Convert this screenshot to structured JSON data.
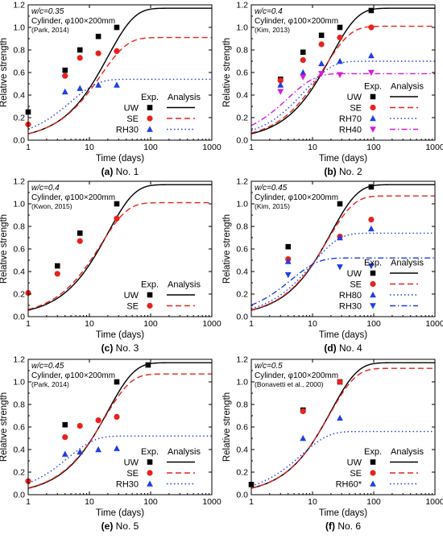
{
  "figure": {
    "ylabel": "Relative strength",
    "xlabel": "Time (days)",
    "legend_headers": [
      "Exp.",
      "Analysis"
    ],
    "colors": {
      "UW": "#000000",
      "SE": "#e8221c",
      "RH30": "#1f3fe0",
      "RH70": "#1f3fe0",
      "RH80": "#1f3fe0",
      "RH60*": "#1f3fe0",
      "RH40": "#d61ad6"
    }
  },
  "chart_data": [
    {
      "type": "scatter",
      "caption_label": "(a)",
      "caption_text": "No. 1",
      "annotation": {
        "wc": "w/c=0.35",
        "cyl": "Cylinder, φ100×200mm",
        "ref": "(Park, 2014)"
      },
      "xscale": "log",
      "xlim": [
        1,
        1000
      ],
      "ylim": [
        0,
        1.2
      ],
      "xticks": [
        1,
        10,
        100,
        1000
      ],
      "yticks": [
        0.0,
        0.2,
        0.4,
        0.6,
        0.8,
        1.0,
        1.2
      ],
      "legend_position": "bottom-right",
      "series": [
        {
          "name": "UW",
          "marker": "square",
          "line": "solid",
          "points": [
            [
              1,
              0.25
            ],
            [
              4,
              0.62
            ],
            [
              7,
              0.8
            ],
            [
              14,
              0.92
            ],
            [
              28,
              1.0
            ]
          ],
          "curve": {
            "ult": 1.17,
            "k": 0.05
          }
        },
        {
          "name": "SE",
          "marker": "circle",
          "line": "dashed",
          "points": [
            [
              1,
              0.14
            ],
            [
              4,
              0.57
            ],
            [
              7,
              0.73
            ],
            [
              14,
              0.77
            ],
            [
              28,
              0.79
            ]
          ],
          "curve": {
            "ult": 0.91,
            "k": 0.065
          }
        },
        {
          "name": "RH30",
          "marker": "triangle-up",
          "line": "dotted",
          "points": [
            [
              4,
              0.43
            ],
            [
              7,
              0.46
            ],
            [
              14,
              0.49
            ],
            [
              28,
              0.49
            ]
          ],
          "curve": {
            "ult": 0.54,
            "k": 0.2
          }
        }
      ]
    },
    {
      "type": "scatter",
      "caption_label": "(b)",
      "caption_text": "No. 2",
      "annotation": {
        "wc": "w/c=0.4",
        "cyl": "Cylinder, φ100×200mm",
        "ref": "(Kim, 2013)"
      },
      "xscale": "log",
      "xlim": [
        1,
        1000
      ],
      "ylim": [
        0,
        1.2
      ],
      "xticks": [
        1,
        10,
        100,
        1000
      ],
      "yticks": [
        0.0,
        0.2,
        0.4,
        0.6,
        0.8,
        1.0,
        1.2
      ],
      "legend_position": "bottom-right",
      "series": [
        {
          "name": "UW",
          "marker": "square",
          "line": "solid",
          "points": [
            [
              3,
              0.54
            ],
            [
              7,
              0.78
            ],
            [
              14,
              0.93
            ],
            [
              28,
              1.0
            ],
            [
              91,
              1.15
            ]
          ],
          "curve": {
            "ult": 1.17,
            "k": 0.05
          }
        },
        {
          "name": "SE",
          "marker": "circle",
          "line": "dashed",
          "points": [
            [
              3,
              0.53
            ],
            [
              7,
              0.71
            ],
            [
              14,
              0.85
            ],
            [
              28,
              0.91
            ],
            [
              91,
              1.0
            ]
          ],
          "curve": {
            "ult": 1.01,
            "k": 0.065
          }
        },
        {
          "name": "RH70",
          "marker": "triangle-up",
          "line": "dotted",
          "points": [
            [
              3,
              0.49
            ],
            [
              7,
              0.6
            ],
            [
              14,
              0.68
            ],
            [
              28,
              0.7
            ],
            [
              91,
              0.75
            ]
          ],
          "curve": {
            "ult": 0.7,
            "k": 0.13
          }
        },
        {
          "name": "RH40",
          "marker": "triangle-down",
          "line": "dashdot",
          "points": [
            [
              3,
              0.43
            ],
            [
              7,
              0.56
            ],
            [
              14,
              0.59
            ],
            [
              28,
              0.58
            ],
            [
              91,
              0.6
            ]
          ],
          "curve": {
            "ult": 0.59,
            "k": 0.25
          }
        }
      ]
    },
    {
      "type": "scatter",
      "caption_label": "(c)",
      "caption_text": "No. 3",
      "annotation": {
        "wc": "w/c=0.4",
        "cyl": "Cylinder, φ100×200mm",
        "ref": "(Kwon, 2015)"
      },
      "xscale": "log",
      "xlim": [
        1,
        1000
      ],
      "ylim": [
        0,
        1.2
      ],
      "xticks": [
        1,
        10,
        100,
        1000
      ],
      "yticks": [
        0.0,
        0.2,
        0.4,
        0.6,
        0.8,
        1.0,
        1.2
      ],
      "legend_position": "bottom-right",
      "series": [
        {
          "name": "UW",
          "marker": "square",
          "line": "solid",
          "points": [
            [
              3,
              0.45
            ],
            [
              7,
              0.74
            ],
            [
              28,
              1.0
            ]
          ],
          "curve": {
            "ult": 1.17,
            "k": 0.05
          }
        },
        {
          "name": "SE",
          "marker": "circle",
          "line": "dashed",
          "points": [
            [
              1,
              0.21
            ],
            [
              3,
              0.38
            ],
            [
              7,
              0.67
            ],
            [
              28,
              0.87
            ]
          ],
          "curve": {
            "ult": 1.01,
            "k": 0.065
          }
        }
      ]
    },
    {
      "type": "scatter",
      "caption_label": "(d)",
      "caption_text": "No. 4",
      "annotation": {
        "wc": "w/c=0.45",
        "cyl": "Cylinder, φ100×200mm",
        "ref": "(Kim, 2015)"
      },
      "xscale": "log",
      "xlim": [
        1,
        1000
      ],
      "ylim": [
        0,
        1.2
      ],
      "xticks": [
        1,
        10,
        100,
        1000
      ],
      "yticks": [
        0.0,
        0.2,
        0.4,
        0.6,
        0.8,
        1.0,
        1.2
      ],
      "legend_position": "bottom-right",
      "series": [
        {
          "name": "UW",
          "marker": "square",
          "line": "solid",
          "points": [
            [
              4,
              0.62
            ],
            [
              28,
              1.0
            ],
            [
              91,
              1.15
            ]
          ],
          "curve": {
            "ult": 1.17,
            "k": 0.05
          }
        },
        {
          "name": "SE",
          "marker": "circle",
          "line": "dashed",
          "points": [
            [
              4,
              0.51
            ],
            [
              28,
              0.71
            ],
            [
              91,
              0.86
            ]
          ],
          "curve": {
            "ult": 1.07,
            "k": 0.057
          }
        },
        {
          "name": "RH80",
          "marker": "triangle-up",
          "line": "dotted",
          "points": [
            [
              4,
              0.49
            ],
            [
              28,
              0.7
            ],
            [
              91,
              0.78
            ]
          ],
          "curve": {
            "ult": 0.74,
            "k": 0.1
          }
        },
        {
          "name": "RH30",
          "marker": "triangle-down",
          "line": "dashdot",
          "points": [
            [
              4,
              0.37
            ],
            [
              28,
              0.44
            ],
            [
              91,
              0.45
            ]
          ],
          "curve": {
            "ult": 0.52,
            "k": 0.22
          }
        }
      ]
    },
    {
      "type": "scatter",
      "caption_label": "(e)",
      "caption_text": "No. 5",
      "annotation": {
        "wc": "w/c=0.45",
        "cyl": "Cylinder, φ100×200mm",
        "ref": "(Park, 2014)"
      },
      "xscale": "log",
      "xlim": [
        1,
        1000
      ],
      "ylim": [
        0,
        1.2
      ],
      "xticks": [
        1,
        10,
        100,
        1000
      ],
      "yticks": [
        0.0,
        0.2,
        0.4,
        0.6,
        0.8,
        1.0,
        1.2
      ],
      "legend_position": "bottom-right",
      "series": [
        {
          "name": "UW",
          "marker": "square",
          "line": "solid",
          "points": [
            [
              4,
              0.62
            ],
            [
              28,
              1.0
            ],
            [
              91,
              1.15
            ]
          ],
          "curve": {
            "ult": 1.17,
            "k": 0.05
          }
        },
        {
          "name": "SE",
          "marker": "circle",
          "line": "dashed",
          "points": [
            [
              1,
              0.12
            ],
            [
              4,
              0.51
            ],
            [
              7,
              0.61
            ],
            [
              14,
              0.66
            ],
            [
              28,
              0.69
            ]
          ],
          "curve": {
            "ult": 1.07,
            "k": 0.057
          }
        },
        {
          "name": "RH30",
          "marker": "triangle-up",
          "line": "dotted",
          "points": [
            [
              4,
              0.36
            ],
            [
              7,
              0.38
            ],
            [
              14,
              0.4
            ],
            [
              28,
              0.41
            ]
          ],
          "curve": {
            "ult": 0.52,
            "k": 0.22
          }
        }
      ]
    },
    {
      "type": "scatter",
      "caption_label": "(f)",
      "caption_text": "No. 6",
      "annotation": {
        "wc": "w/c=0.5",
        "cyl": "Cylinder, φ100×200mm",
        "ref": "(Bonavetti et al., 2000)"
      },
      "xscale": "log",
      "xlim": [
        1,
        1000
      ],
      "ylim": [
        0,
        1.2
      ],
      "xticks": [
        1,
        10,
        100,
        1000
      ],
      "yticks": [
        0.0,
        0.2,
        0.4,
        0.6,
        0.8,
        1.0,
        1.2
      ],
      "legend_position": "bottom-right",
      "series": [
        {
          "name": "UW",
          "marker": "square",
          "line": "solid",
          "points": [
            [
              1,
              0.09
            ],
            [
              7,
              0.75
            ],
            [
              28,
              1.0
            ]
          ],
          "curve": {
            "ult": 1.17,
            "k": 0.05
          }
        },
        {
          "name": "SE",
          "marker": "circle",
          "line": "dashed",
          "points": [
            [
              7,
              0.74
            ],
            [
              28,
              1.0
            ]
          ],
          "curve": {
            "ult": 1.12,
            "k": 0.053
          }
        },
        {
          "name": "RH60*",
          "marker": "triangle-up",
          "line": "dotted",
          "points": [
            [
              7,
              0.5
            ],
            [
              28,
              0.68
            ]
          ],
          "curve": {
            "ult": 0.56,
            "k": 0.15
          }
        }
      ]
    }
  ]
}
